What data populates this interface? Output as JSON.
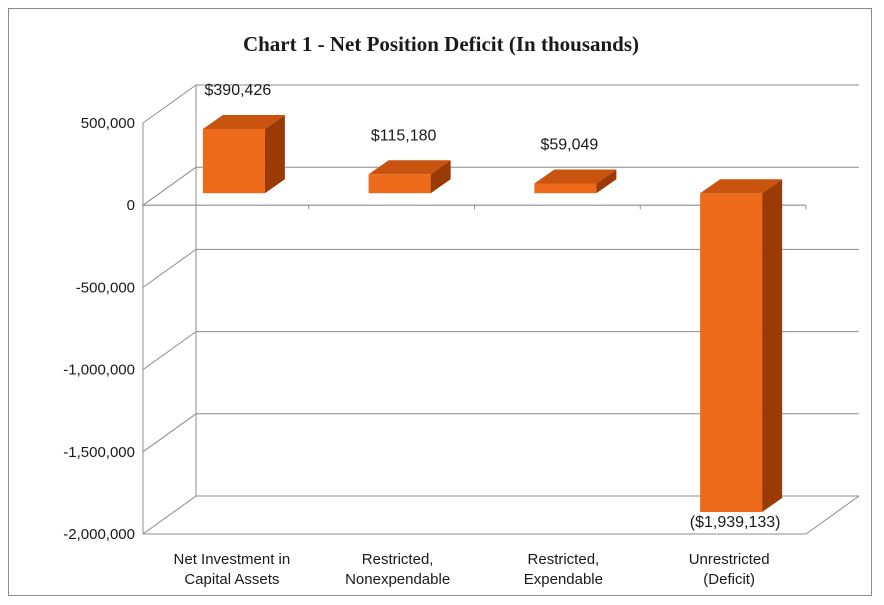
{
  "chart_data": {
    "type": "bar",
    "title": "Chart 1 - Net Position Deficit (In thousands)",
    "categories": [
      [
        "Net Investment in",
        "Capital Assets"
      ],
      [
        "Restricted,",
        "Nonexpendable"
      ],
      [
        "Restricted,",
        "Expendable"
      ],
      [
        "Unrestricted",
        "(Deficit)"
      ]
    ],
    "values": [
      390426,
      115180,
      59049,
      -1939133
    ],
    "data_labels": [
      "$390,426",
      "$115,180",
      "$59,049",
      "($1,939,133)"
    ],
    "ylim": [
      -2000000,
      500000
    ],
    "yticks": [
      500000,
      0,
      -500000,
      -1000000,
      -1500000,
      -2000000
    ],
    "ytick_labels": [
      "500,000",
      "0",
      "-500,000",
      "-1,000,000",
      "-1,500,000",
      "-2,000,000"
    ],
    "grid": true,
    "three_d": true,
    "colors": {
      "bar_front": "#ec6a1a",
      "bar_side": "#9c3a06",
      "bar_top": "#c85410",
      "grid": "#8c8c8c"
    }
  }
}
